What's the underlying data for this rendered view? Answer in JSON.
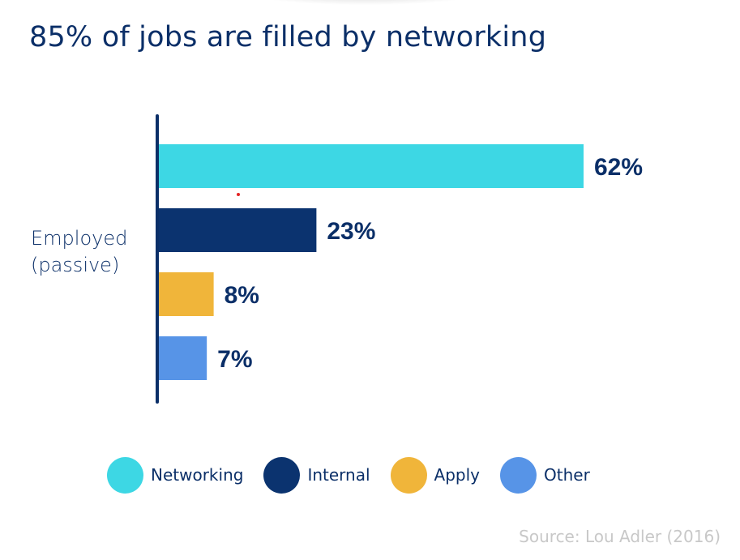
{
  "chart_data": {
    "type": "bar",
    "orientation": "horizontal",
    "title": "85% of jobs are filled by networking",
    "categories": [
      "Employed (passive)"
    ],
    "category_label_lines": [
      "Employed",
      "(passive)"
    ],
    "series": [
      {
        "name": "Networking",
        "value": 62,
        "label": "62%",
        "color": "#3dd7e4"
      },
      {
        "name": "Internal",
        "value": 23,
        "label": "23%",
        "color": "#0b336f"
      },
      {
        "name": "Apply",
        "value": 8,
        "label": "8%",
        "color": "#f0b53a"
      },
      {
        "name": "Other",
        "value": 7,
        "label": "7%",
        "color": "#5794e7"
      }
    ],
    "xlim": [
      0,
      62
    ],
    "grid": false,
    "legend_position": "bottom",
    "source": "Source: Lou Adler (2016)"
  }
}
